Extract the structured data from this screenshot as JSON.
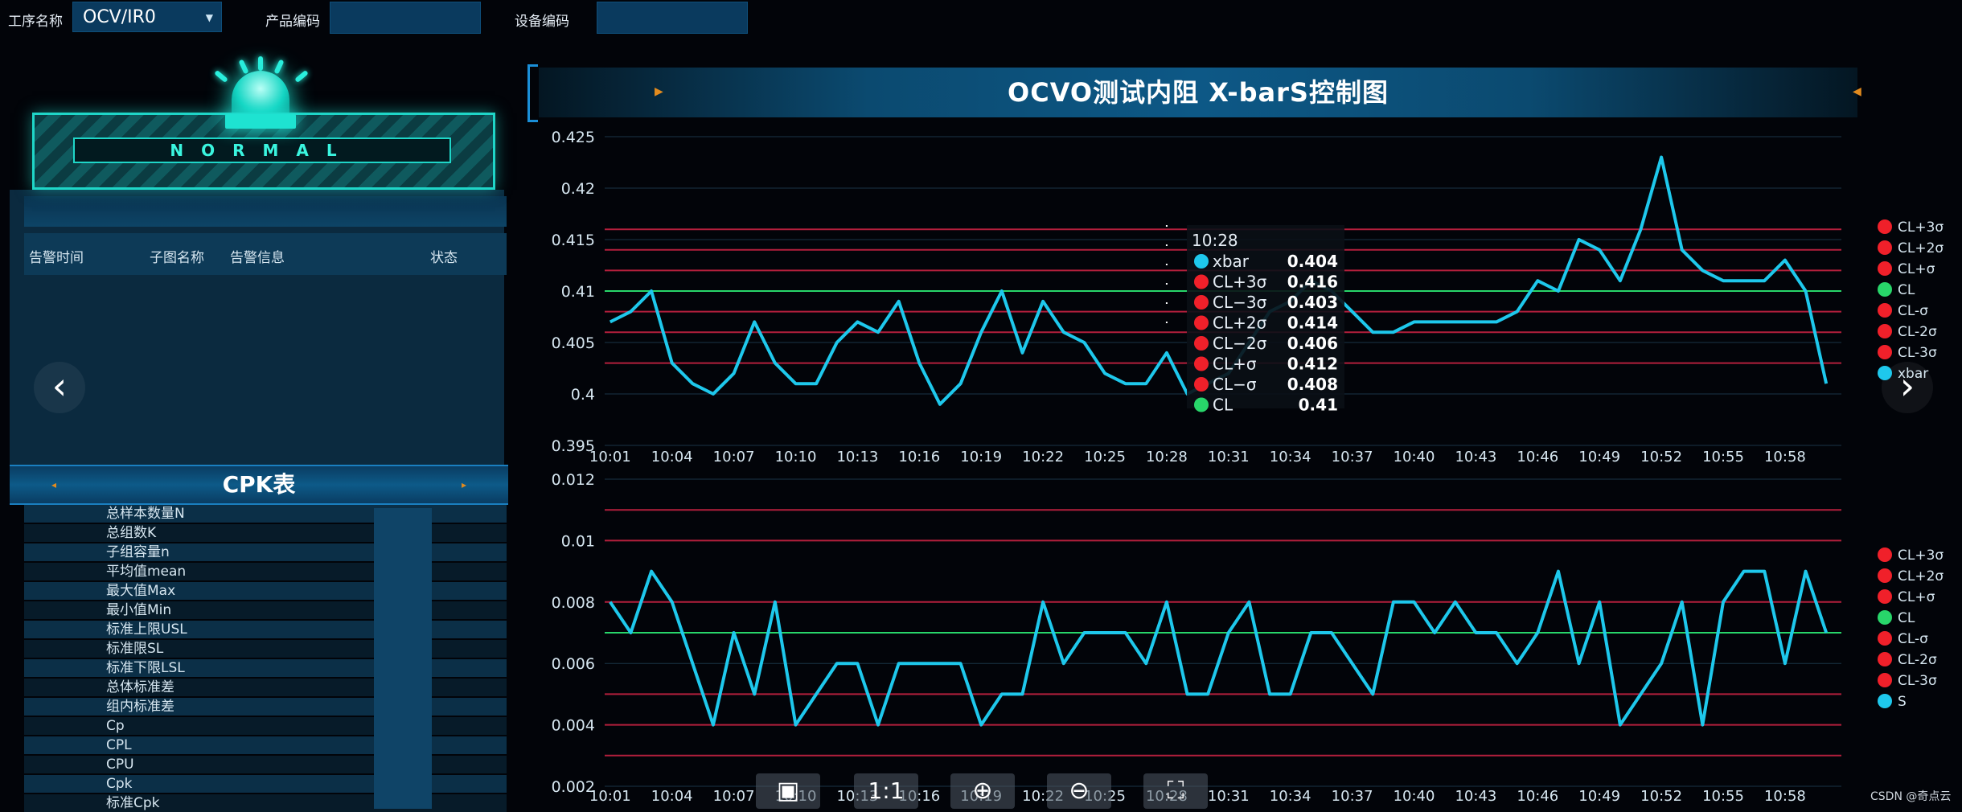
{
  "topbar": {
    "process_label": "工序名称",
    "process_value": "OCV/IR0",
    "product_label": "产品编码",
    "product_value": "",
    "device_label": "设备编码",
    "device_value": ""
  },
  "alarm": {
    "status": "NORMAL",
    "columns": [
      "告警时间",
      "子图名称",
      "告警信息",
      "状态"
    ]
  },
  "cpk": {
    "title": "CPK表",
    "rows": [
      "总样本数量N",
      "总组数K",
      "子组容量n",
      "平均值mean",
      "最大值Max",
      "最小值Min",
      "标准上限USL",
      "标准限SL",
      "标准下限LSL",
      "总体标准差",
      "组内标准差",
      "Cp",
      "CPL",
      "CPU",
      "Cpk",
      "标准Cpk"
    ]
  },
  "chart_title": "OCVO测试内阻  X-barS控制图",
  "colors": {
    "series": "#1ec8ec",
    "cl": "#28d66a",
    "limit": "#b31f3c",
    "legend_red": "#f0202a"
  },
  "chart_data": [
    {
      "type": "line",
      "x": [
        "10:01",
        "10:02",
        "10:03",
        "10:04",
        "10:05",
        "10:06",
        "10:07",
        "10:08",
        "10:09",
        "10:10",
        "10:11",
        "10:12",
        "10:13",
        "10:14",
        "10:15",
        "10:16",
        "10:17",
        "10:18",
        "10:19",
        "10:20",
        "10:21",
        "10:22",
        "10:23",
        "10:24",
        "10:25",
        "10:26",
        "10:27",
        "10:28",
        "10:29",
        "10:30",
        "10:31",
        "10:32",
        "10:33",
        "10:34",
        "10:35",
        "10:36",
        "10:37",
        "10:38",
        "10:39",
        "10:40",
        "10:41",
        "10:42",
        "10:43",
        "10:44",
        "10:45",
        "10:46",
        "10:47",
        "10:48",
        "10:49",
        "10:50",
        "10:51",
        "10:52",
        "10:53",
        "10:54",
        "10:55",
        "10:56",
        "10:57",
        "10:58",
        "10:59",
        "11:00"
      ],
      "xticks": [
        "10:01",
        "10:04",
        "10:07",
        "10:10",
        "10:13",
        "10:16",
        "10:19",
        "10:22",
        "10:25",
        "10:28",
        "10:31",
        "10:34",
        "10:37",
        "10:40",
        "10:43",
        "10:46",
        "10:49",
        "10:52",
        "10:55",
        "10:58"
      ],
      "ylim": [
        0.395,
        0.425
      ],
      "yticks": [
        "0.395",
        "0.4",
        "0.405",
        "0.41",
        "0.415",
        "0.42",
        "0.425"
      ],
      "series": [
        {
          "name": "xbar",
          "values": [
            0.407,
            0.408,
            0.41,
            0.403,
            0.401,
            0.4,
            0.402,
            0.407,
            0.403,
            0.401,
            0.401,
            0.405,
            0.407,
            0.406,
            0.409,
            0.403,
            0.399,
            0.401,
            0.406,
            0.41,
            0.404,
            0.409,
            0.406,
            0.405,
            0.402,
            0.401,
            0.401,
            0.404,
            0.4,
            0.401,
            0.402,
            0.405,
            0.408,
            0.409,
            0.411,
            0.41,
            0.408,
            0.406,
            0.406,
            0.407,
            0.407,
            0.407,
            0.407,
            0.407,
            0.408,
            0.411,
            0.41,
            0.415,
            0.414,
            0.411,
            0.416,
            0.423,
            0.414,
            0.412,
            0.411,
            0.411,
            0.411,
            0.413,
            0.41,
            0.401
          ]
        }
      ],
      "limits": [
        {
          "name": "CL+3σ",
          "value": 0.416
        },
        {
          "name": "CL+2σ",
          "value": 0.414
        },
        {
          "name": "CL+σ",
          "value": 0.412
        },
        {
          "name": "CL",
          "value": 0.41
        },
        {
          "name": "CL-σ",
          "value": 0.408
        },
        {
          "name": "CL-2σ",
          "value": 0.406
        },
        {
          "name": "CL-3σ",
          "value": 0.403
        }
      ],
      "legend": [
        "CL+3σ",
        "CL+2σ",
        "CL+σ",
        "CL",
        "CL-σ",
        "CL-2σ",
        "CL-3σ",
        "xbar"
      ],
      "tooltip": {
        "time": "10:28",
        "rows": [
          {
            "name": "xbar",
            "value": "0.404",
            "color": "#1ec8ec"
          },
          {
            "name": "CL+3σ",
            "value": "0.416",
            "color": "#f0202a"
          },
          {
            "name": "CL−3σ",
            "value": "0.403",
            "color": "#f0202a"
          },
          {
            "name": "CL+2σ",
            "value": "0.414",
            "color": "#f0202a"
          },
          {
            "name": "CL−2σ",
            "value": "0.406",
            "color": "#f0202a"
          },
          {
            "name": "CL+σ",
            "value": "0.412",
            "color": "#f0202a"
          },
          {
            "name": "CL−σ",
            "value": "0.408",
            "color": "#f0202a"
          },
          {
            "name": "CL",
            "value": "0.41",
            "color": "#28d66a"
          }
        ]
      }
    },
    {
      "type": "line",
      "ylim": [
        0.002,
        0.012
      ],
      "yticks": [
        "0.002",
        "0.004",
        "0.006",
        "0.008",
        "0.01",
        "0.012"
      ],
      "series": [
        {
          "name": "S",
          "values": [
            0.008,
            0.007,
            0.009,
            0.008,
            0.006,
            0.004,
            0.007,
            0.005,
            0.008,
            0.004,
            0.005,
            0.006,
            0.006,
            0.004,
            0.006,
            0.006,
            0.006,
            0.006,
            0.004,
            0.005,
            0.005,
            0.008,
            0.006,
            0.007,
            0.007,
            0.007,
            0.006,
            0.008,
            0.005,
            0.005,
            0.007,
            0.008,
            0.005,
            0.005,
            0.007,
            0.007,
            0.006,
            0.005,
            0.008,
            0.008,
            0.007,
            0.008,
            0.007,
            0.007,
            0.006,
            0.007,
            0.009,
            0.006,
            0.008,
            0.004,
            0.005,
            0.006,
            0.008,
            0.004,
            0.008,
            0.009,
            0.009,
            0.006,
            0.009,
            0.007
          ]
        }
      ],
      "limits": [
        {
          "name": "CL+3σ",
          "value": 0.011
        },
        {
          "name": "CL+2σ",
          "value": 0.01
        },
        {
          "name": "CL+σ",
          "value": 0.008
        },
        {
          "name": "CL",
          "value": 0.007
        },
        {
          "name": "CL-σ",
          "value": 0.005
        },
        {
          "name": "CL-2σ",
          "value": 0.004
        },
        {
          "name": "CL-3σ",
          "value": 0.003
        }
      ],
      "legend": [
        "CL+3σ",
        "CL+2σ",
        "CL+σ",
        "CL",
        "CL-σ",
        "CL-2σ",
        "CL-3σ",
        "S"
      ]
    }
  ],
  "toolbar": {
    "ratio_label": "1:1"
  },
  "watermark": "CSDN @奇点云"
}
